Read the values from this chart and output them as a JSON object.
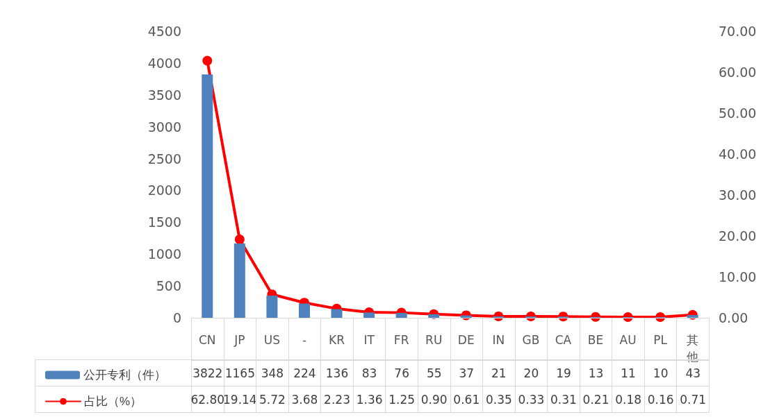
{
  "chart_data": {
    "type": "bar",
    "categories": [
      "CN",
      "JP",
      "US",
      "-",
      "KR",
      "IT",
      "FR",
      "RU",
      "DE",
      "IN",
      "GB",
      "CA",
      "BE",
      "AU",
      "PL",
      "其他"
    ],
    "series": [
      {
        "name": "公开专利（件）",
        "color": "#4f81bd",
        "values": [
          3822,
          1165,
          348,
          224,
          136,
          83,
          76,
          55,
          37,
          21,
          20,
          19,
          13,
          11,
          10,
          43
        ],
        "value_labels": [
          "3822",
          "1165",
          "348",
          "224",
          "136",
          "83",
          "76",
          "55",
          "37",
          "21",
          "20",
          "19",
          "13",
          "11",
          "10",
          "43"
        ]
      },
      {
        "name": "占比（%）",
        "type": "line",
        "axis": "y2",
        "color": "#ff0000",
        "values": [
          62.8,
          19.14,
          5.72,
          3.68,
          2.23,
          1.36,
          1.25,
          0.9,
          0.61,
          0.35,
          0.33,
          0.31,
          0.21,
          0.18,
          0.16,
          0.71
        ],
        "value_labels": [
          "62.80",
          "19.14",
          "5.72",
          "3.68",
          "2.23",
          "1.36",
          "1.25",
          "0.90",
          "0.61",
          "0.35",
          "0.33",
          "0.31",
          "0.21",
          "0.18",
          "0.16",
          "0.71"
        ]
      }
    ],
    "ylim": [
      0,
      4500
    ],
    "yticks": [
      0,
      500,
      1000,
      1500,
      2000,
      2500,
      3000,
      3500,
      4000,
      4500
    ],
    "y2lim": [
      0,
      70
    ],
    "y2ticks": [
      {
        "value": 0,
        "label": "0.00"
      },
      {
        "value": 10,
        "label": "10.00"
      },
      {
        "value": 20,
        "label": "20.00"
      },
      {
        "value": 30,
        "label": "30.00"
      },
      {
        "value": 40,
        "label": "40.00"
      },
      {
        "value": 50,
        "label": "50.00"
      },
      {
        "value": 60,
        "label": "60.00"
      },
      {
        "value": 70,
        "label": "70.00"
      }
    ],
    "grid": false,
    "legend": "bottom",
    "marker": "circle",
    "line_style": "solid"
  }
}
